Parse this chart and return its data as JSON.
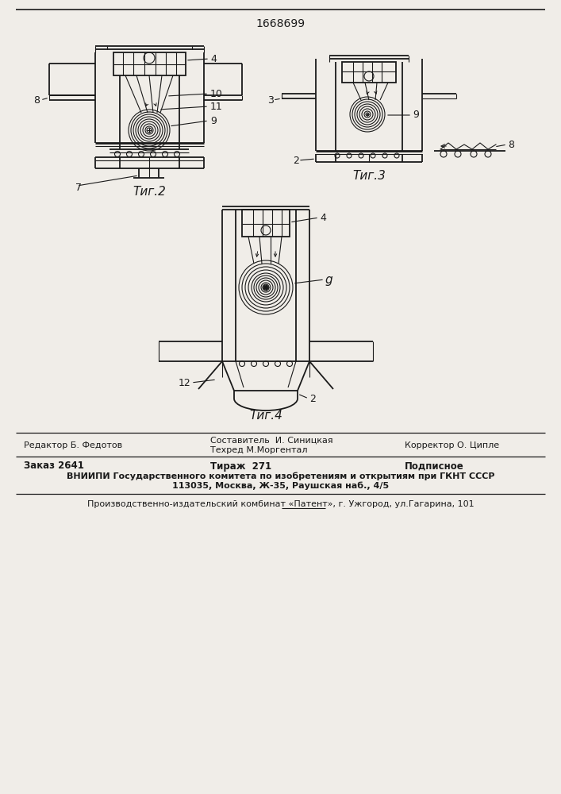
{
  "title_number": "1668699",
  "fig2_label": "Τиг.2",
  "fig3_label": "Τиг.3",
  "fig4_label": "Τиг.4",
  "footer_editor": "Редактор Б. Федотов",
  "footer_author1": "Составитель  И. Синицкая",
  "footer_author2": "Техред М.Моргентал",
  "footer_corrector": "Корректор О. Ципле",
  "footer_order": "Заказ 2641",
  "footer_tirazh": "Тираж  271",
  "footer_podpisnoe": "Подписное",
  "footer_vniipii": "ВНИИПИ Государственного комитета по изобретениям и открытиям при ГКНТ СССР",
  "footer_address": "113035, Москва, Ж-35, Раушская наб., 4/5",
  "footer_patent": "Производственно-издательский комбинат «Патент», г. Ужгород, ул.Гагарина, 101",
  "bg_color": "#f0ede8",
  "line_color": "#1a1a1a"
}
